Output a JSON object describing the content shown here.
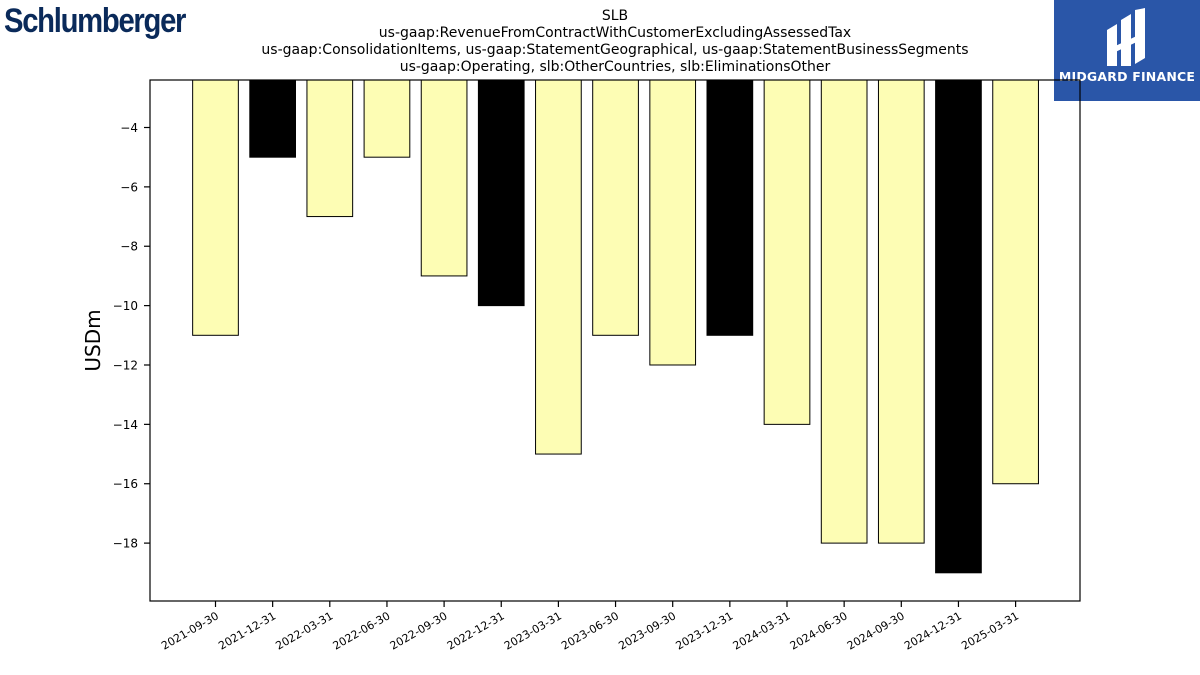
{
  "logos": {
    "left_text": "Schlumberger",
    "right_text": "MIDGARD FINANCE",
    "right_bg": "#2a56a8"
  },
  "chart_data": {
    "type": "bar",
    "title_lines": [
      "SLB",
      "us-gaap:RevenueFromContractWithCustomerExcludingAssessedTax",
      "us-gaap:ConsolidationItems, us-gaap:StatementGeographical, us-gaap:StatementBusinessSegments",
      "us-gaap:Operating, slb:OtherCountries, slb:EliminationsOther"
    ],
    "xlabel": "",
    "ylabel": "USDm",
    "categories": [
      "2021-09-30",
      "2021-12-31",
      "2022-03-31",
      "2022-06-30",
      "2022-09-30",
      "2022-12-31",
      "2023-03-31",
      "2023-06-30",
      "2023-09-30",
      "2023-12-31",
      "2024-03-31",
      "2024-06-30",
      "2024-09-30",
      "2024-12-31",
      "2025-03-31"
    ],
    "values": [
      -11,
      -5,
      -7,
      -5,
      -9,
      -10,
      -15,
      -11,
      -12,
      -11,
      -14,
      -18,
      -18,
      -19,
      -16
    ],
    "highlight": [
      false,
      true,
      false,
      false,
      false,
      true,
      false,
      false,
      false,
      true,
      false,
      false,
      false,
      true,
      false
    ],
    "colors": {
      "normal": "#fdfdb4",
      "highlight": "#000000",
      "edge": "#000000"
    },
    "ylim": [
      -19.95,
      -2.4
    ],
    "yticks": [
      -4,
      -6,
      -8,
      -10,
      -12,
      -14,
      -16,
      -18
    ],
    "ytick_labels": [
      "−4",
      "−6",
      "−8",
      "−10",
      "−12",
      "−14",
      "−16",
      "−18"
    ],
    "grid": false
  }
}
